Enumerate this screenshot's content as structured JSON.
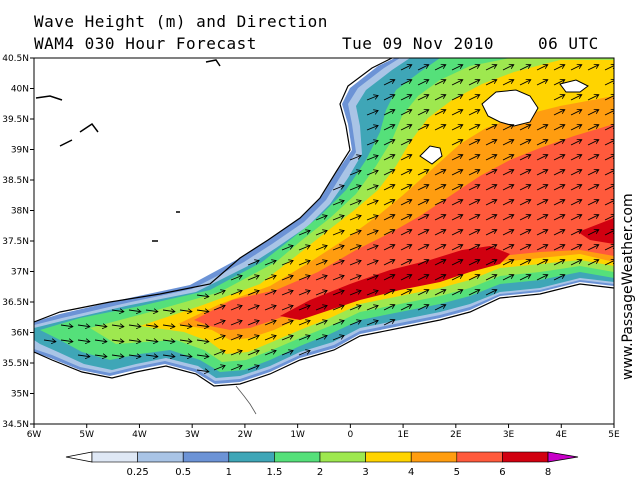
{
  "header": {
    "line1": "Wave Height (m) and Direction",
    "line2": "WAM4 030 Hour Forecast",
    "date": "Tue 09 Nov 2010",
    "time": "06 UTC"
  },
  "map": {
    "lat_labels": [
      "40.5N",
      "40N",
      "39.5N",
      "39N",
      "38.5N",
      "38N",
      "37.5N",
      "37N",
      "36.5N",
      "36N",
      "35.5N",
      "35N",
      "34.5N"
    ],
    "lon_labels": [
      "6W",
      "5W",
      "4W",
      "3W",
      "2W",
      "1W",
      "0",
      "1E",
      "2E",
      "3E",
      "4E",
      "5E"
    ],
    "colors": {
      "land": "#ffffff",
      "coast": "#000000",
      "frame": "#000000"
    }
  },
  "colorbar": {
    "labels": [
      "0.25",
      "0.5",
      "1",
      "1.5",
      "2",
      "3",
      "4",
      "5",
      "6",
      "8"
    ],
    "colors": [
      "#ffffff",
      "#dfe8f5",
      "#a9c4e6",
      "#6c93d6",
      "#3fa6b7",
      "#55e07a",
      "#9ee84f",
      "#ffd400",
      "#ff9d10",
      "#ff5a3c",
      "#d10010",
      "#c800c8"
    ]
  },
  "watermark": "www.PassageWeather.com"
}
